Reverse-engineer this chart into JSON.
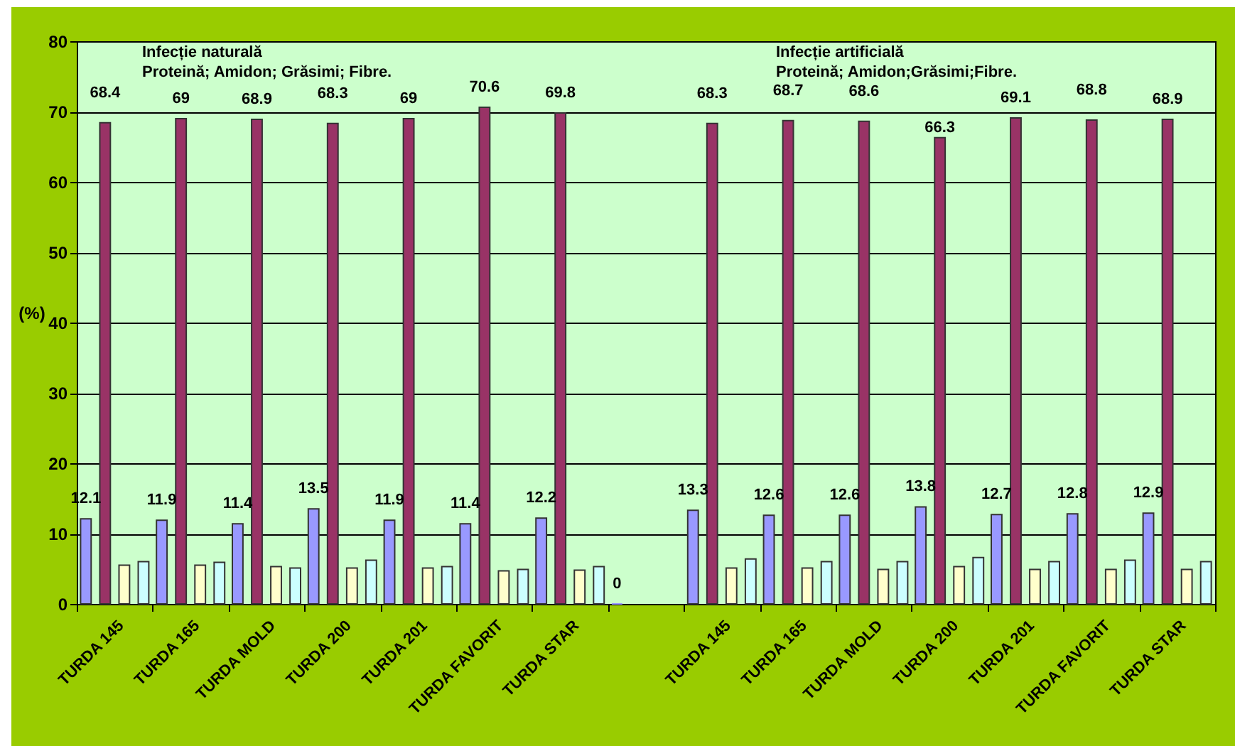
{
  "chart_data": {
    "type": "bar",
    "ylabel": "(%)",
    "categories": [
      "TURDA 145",
      "TURDA 165",
      "TURDA MOLD",
      "TURDA 200",
      "TURDA 201",
      "TURDA FAVORIT",
      "TURDA STAR",
      null,
      "TURDA 145",
      "TURDA 165",
      "TURDA MOLD",
      "TURDA 200",
      "TURDA 201",
      "TURDA FAVORIT",
      "TURDA STAR"
    ],
    "series": [
      {
        "color": "#9999ff",
        "values": [
          12.1,
          11.9,
          11.4,
          13.5,
          11.9,
          11.4,
          12.2,
          0,
          13.3,
          12.6,
          12.6,
          13.8,
          12.7,
          12.8,
          12.9
        ],
        "value_labels": [
          "12.1",
          "11.9",
          "11.4",
          "13.5",
          "11.9",
          "11.4",
          "12.2",
          "0",
          "13.3",
          "12.6",
          "12.6",
          "13.8",
          "12.7",
          "12.8",
          "12.9"
        ]
      },
      {
        "color": "#993366",
        "values": [
          68.4,
          69,
          68.9,
          68.3,
          69,
          70.6,
          69.8,
          null,
          68.3,
          68.7,
          68.6,
          66.3,
          69.1,
          68.8,
          68.9
        ],
        "value_labels": [
          "68.4",
          "69",
          "68.9",
          "68.3",
          "69",
          "70.6",
          "69.8",
          null,
          "68.3",
          "68.7",
          "68.6",
          "66.3",
          "69.1",
          "68.8",
          "68.9"
        ]
      },
      {
        "color": "#ffffcc",
        "values": [
          5.5,
          5.5,
          5.3,
          5.1,
          5.1,
          4.7,
          4.8,
          null,
          5.1,
          5.1,
          4.9,
          5.3,
          4.9,
          4.9,
          4.9
        ]
      },
      {
        "color": "#ccffff",
        "values": [
          6.0,
          5.9,
          5.1,
          6.2,
          5.3,
          4.9,
          5.3,
          null,
          6.4,
          6.0,
          6.0,
          6.6,
          6.0,
          6.2,
          6.0
        ]
      }
    ],
    "ylim": [
      0,
      80
    ],
    "yticks": [
      0,
      10,
      20,
      30,
      40,
      50,
      60,
      70,
      80
    ],
    "grid": "y",
    "legend": false,
    "annotations": [
      "Infecție naturală",
      "Proteină; Amidon; Grăsimi; Fibre.",
      "Infecție artificială",
      "Proteină; Amidon;Grăsimi;Fibre."
    ]
  }
}
